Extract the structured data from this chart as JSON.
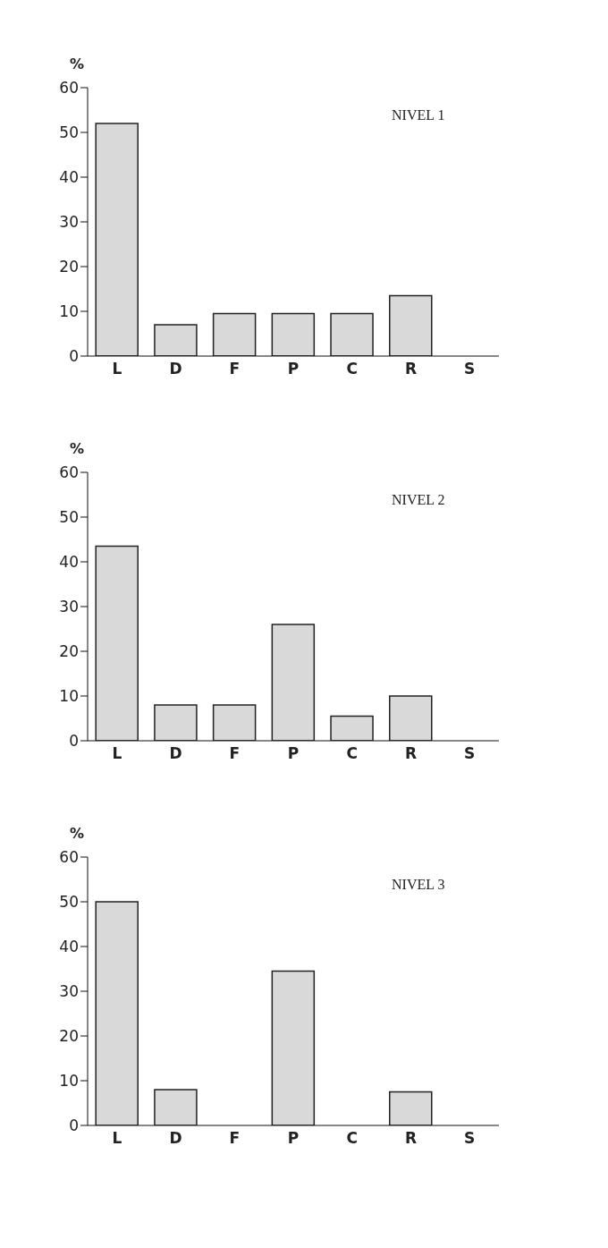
{
  "chart_data": [
    {
      "type": "bar",
      "title": "NIVEL 1",
      "ylabel": "%",
      "categories": [
        "L",
        "D",
        "F",
        "P",
        "C",
        "R",
        "S"
      ],
      "values": [
        52,
        7,
        9.5,
        9.5,
        9.5,
        13.5,
        0
      ],
      "color": "#d9d9d9",
      "ylim": [
        0,
        60
      ],
      "yticks": [
        0,
        10,
        20,
        30,
        40,
        50,
        60
      ],
      "grid": false,
      "legend": false
    },
    {
      "type": "bar",
      "title": "NIVEL 2",
      "ylabel": "%",
      "categories": [
        "L",
        "D",
        "F",
        "P",
        "C",
        "R",
        "S"
      ],
      "values": [
        43.5,
        8,
        8,
        26,
        5.5,
        10,
        0
      ],
      "color": "#d9d9d9",
      "ylim": [
        0,
        60
      ],
      "yticks": [
        0,
        10,
        20,
        30,
        40,
        50,
        60
      ],
      "grid": false,
      "legend": false
    },
    {
      "type": "bar",
      "title": "NIVEL 3",
      "ylabel": "%",
      "categories": [
        "L",
        "D",
        "F",
        "P",
        "C",
        "R",
        "S"
      ],
      "values": [
        50,
        8,
        0,
        34.5,
        0,
        7.5,
        0
      ],
      "color": "#d9d9d9",
      "ylim": [
        0,
        60
      ],
      "yticks": [
        0,
        10,
        20,
        30,
        40,
        50,
        60
      ],
      "grid": false,
      "legend": false
    }
  ]
}
